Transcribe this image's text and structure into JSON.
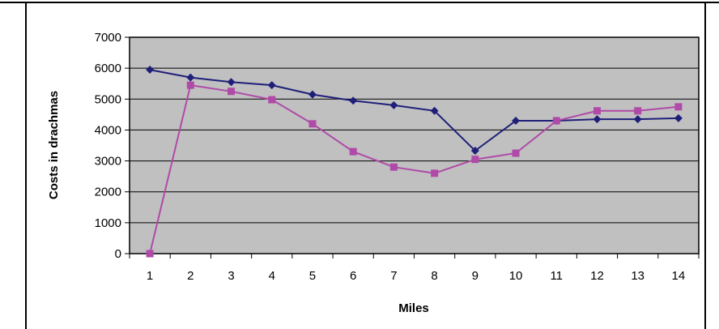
{
  "colors": {
    "plot_background": "#c0c0c0",
    "gridline": "#000000",
    "frame": "#000000",
    "series_1": "#1f1f7a",
    "series_2": "#b04aa8"
  },
  "chart_data": {
    "type": "line",
    "title": "",
    "xlabel": "Miles",
    "ylabel": "Costs in drachmas",
    "ylim": [
      0,
      7000
    ],
    "yticks": [
      0,
      1000,
      2000,
      3000,
      4000,
      5000,
      6000,
      7000
    ],
    "ytick_labels": [
      "0",
      "1000",
      "2000",
      "3000",
      "4000",
      "5000",
      "6000",
      "7000"
    ],
    "categories": [
      "1",
      "2",
      "3",
      "4",
      "5",
      "6",
      "7",
      "8",
      "9",
      "10",
      "11",
      "12",
      "13",
      "14"
    ],
    "grid": "horizontal",
    "legend": "none",
    "series": [
      {
        "marker": "diamond",
        "color": "#1f1f7a",
        "values": [
          5950,
          5700,
          5550,
          5450,
          5150,
          4950,
          4800,
          4620,
          3330,
          4300,
          4300,
          4350,
          4350,
          4380
        ]
      },
      {
        "marker": "square",
        "color": "#b04aa8",
        "values": [
          0,
          5450,
          5250,
          4980,
          4200,
          3300,
          2800,
          2600,
          3050,
          3250,
          4300,
          4620,
          4620,
          4750
        ]
      }
    ]
  }
}
